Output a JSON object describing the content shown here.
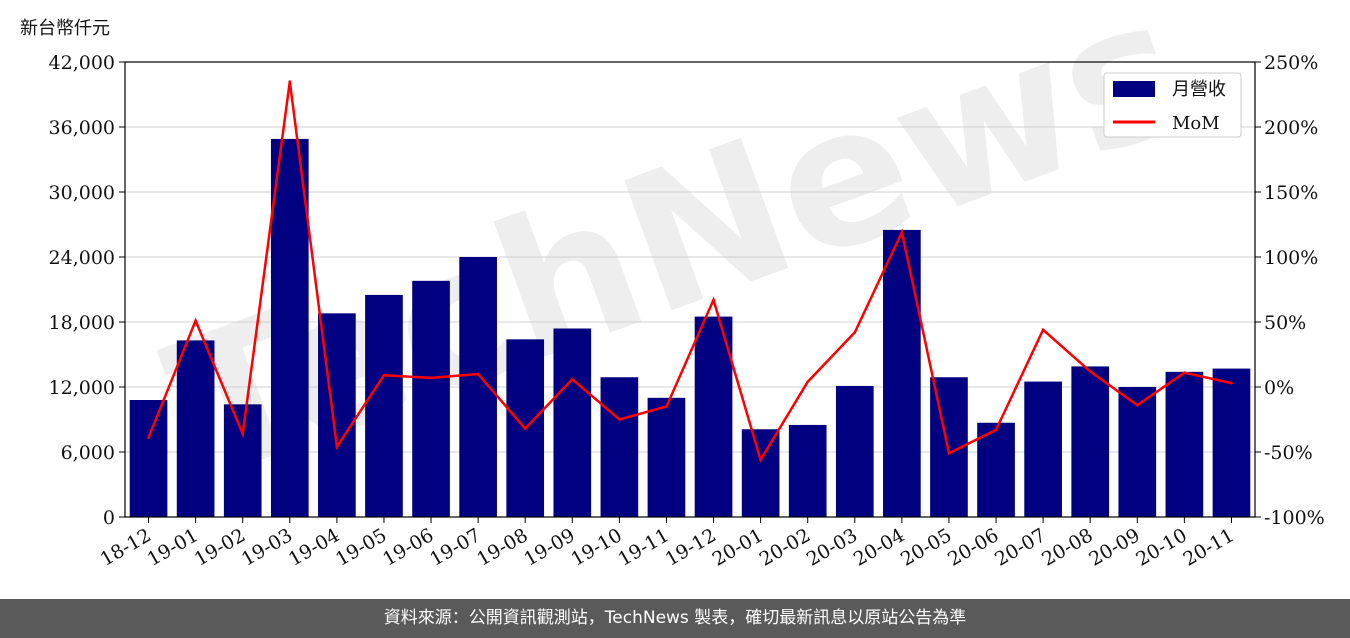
{
  "chart_data": {
    "type": "bar",
    "unit_label": "新台幣仟元",
    "categories": [
      "18-12",
      "19-01",
      "19-02",
      "19-03",
      "19-04",
      "19-05",
      "19-06",
      "19-07",
      "19-08",
      "19-09",
      "19-10",
      "19-11",
      "19-12",
      "20-01",
      "20-02",
      "20-03",
      "20-04",
      "20-05",
      "20-06",
      "20-07",
      "20-08",
      "20-09",
      "20-10",
      "20-11"
    ],
    "series": [
      {
        "name": "月營收",
        "type": "bar",
        "axis": "left",
        "color": "#000080",
        "values": [
          10800,
          16300,
          10400,
          34900,
          18800,
          20500,
          21800,
          24000,
          16400,
          17400,
          12900,
          11000,
          18500,
          8100,
          8500,
          12100,
          26500,
          12900,
          8700,
          12500,
          13900,
          12000,
          13400,
          13700
        ]
      },
      {
        "name": "MoM",
        "type": "line",
        "axis": "right",
        "color": "#ff0000",
        "values": [
          -39,
          51,
          -36,
          235,
          -46,
          9,
          7,
          10,
          -32,
          6,
          -25,
          -15,
          67,
          -56,
          4,
          42,
          119,
          -51,
          -33,
          44,
          12,
          -14,
          11,
          3
        ]
      }
    ],
    "left_axis": {
      "ylim": [
        0,
        42000
      ],
      "ticks": [
        "0",
        "6,000",
        "12,000",
        "18,000",
        "24,000",
        "30,000",
        "36,000",
        "42,000"
      ],
      "tick_values": [
        0,
        6000,
        12000,
        18000,
        24000,
        30000,
        36000,
        42000
      ]
    },
    "right_axis": {
      "ylim": [
        -100,
        250
      ],
      "ticks": [
        "-100%",
        "-50%",
        "0%",
        "50%",
        "100%",
        "150%",
        "200%",
        "250%"
      ],
      "tick_values": [
        -100,
        -50,
        0,
        50,
        100,
        150,
        200,
        250
      ]
    },
    "grid": "horizontal",
    "legend": "top-right",
    "watermark": "TechNews"
  },
  "footer": {
    "text": "資料來源：公開資訊觀測站，TechNews 製表，確切最新訊息以原站公告為準"
  }
}
